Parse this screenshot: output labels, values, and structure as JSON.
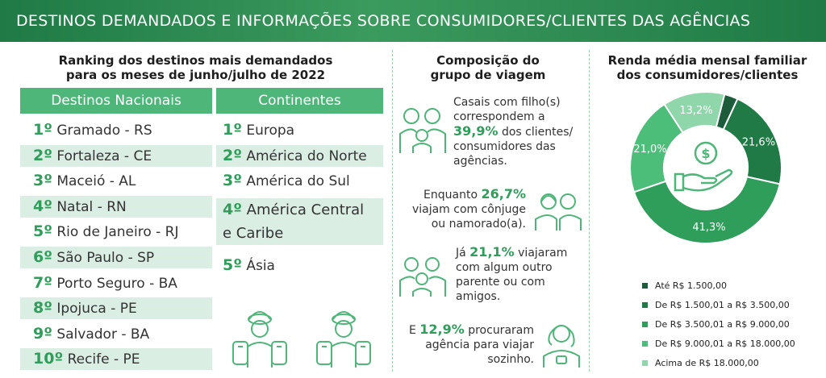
{
  "header": {
    "title": "DESTINOS DEMANDADOS E INFORMAÇÕES SOBRE CONSUMIDORES/CLIENTES DAS AGÊNCIAS"
  },
  "ranking": {
    "title_line1": "Ranking dos destinos mais demandados",
    "title_line2": "para os meses de junho/julho de 2022",
    "national_header": "Destinos Nacionais",
    "continents_header": "Continentes",
    "national": [
      {
        "rank": "1º",
        "name": "Gramado - RS"
      },
      {
        "rank": "2º",
        "name": "Fortaleza - CE"
      },
      {
        "rank": "3º",
        "name": "Maceió - AL"
      },
      {
        "rank": "4º",
        "name": "Natal - RN"
      },
      {
        "rank": "5º",
        "name": "Rio de Janeiro - RJ"
      },
      {
        "rank": "6º",
        "name": "São Paulo - SP"
      },
      {
        "rank": "7º",
        "name": "Porto Seguro - BA"
      },
      {
        "rank": "8º",
        "name": "Ipojuca - PE"
      },
      {
        "rank": "9º",
        "name": " Salvador - BA"
      },
      {
        "rank": "10º",
        "name": "Recife - PE"
      }
    ],
    "continents": [
      {
        "rank": "1º",
        "name": "Europa"
      },
      {
        "rank": "2º",
        "name": "América do Norte"
      },
      {
        "rank": "3º",
        "name": "América do Sul"
      },
      {
        "rank": "4º",
        "name": "América Central",
        "name2": "e Caribe"
      },
      {
        "rank": "5º",
        "name": "Ásia"
      }
    ]
  },
  "group": {
    "title_line1": "Composição do",
    "title_line2": "grupo de viagem",
    "item1": {
      "l1": "Casais com filho(s)",
      "l2": "correspondem a",
      "pct": "39,9%",
      "l3rest": " dos clientes/",
      "l4": "consumidores das",
      "l5": "agências."
    },
    "item2": {
      "pre": "Enquanto ",
      "pct": "26,7%",
      "l2": "viajam com cônjuge",
      "l3": "ou namorado(a)."
    },
    "item3": {
      "pre": "Já ",
      "pct": "21,1%",
      "post": " viajaram",
      "l2": "com algum outro",
      "l3": "parente ou com",
      "l4": "amigos."
    },
    "item4": {
      "pre": "E ",
      "pct": "12,9%",
      "post": " procuraram",
      "l2": "agência para viajar",
      "l3": "sozinho."
    }
  },
  "income": {
    "title_line1": "Renda média mensal familiar",
    "title_line2": "dos consumidores/clientes"
  },
  "chart_data": {
    "type": "pie",
    "donut": true,
    "title": "Renda média mensal familiar dos consumidores/clientes",
    "legend_position": "bottom",
    "slices": [
      {
        "label": "Até R$ 1.500,00",
        "value": 2.9,
        "text": "2,9%",
        "color": "#1d5c3b"
      },
      {
        "label": "De R$ 1.500,01 a R$ 3.500,00",
        "value": 21.6,
        "text": "21,6%",
        "color": "#1f7a45"
      },
      {
        "label": "De R$ 3.500,01 a R$ 9.000,00",
        "value": 41.3,
        "text": "41,3%",
        "color": "#2e9e5a"
      },
      {
        "label": "De R$ 9.000,01 a R$ 18.000,00",
        "value": 21.0,
        "text": "21,0%",
        "color": "#4dbe7a"
      },
      {
        "label": "Acima de R$ 18.000,00",
        "value": 13.2,
        "text": "13,2%",
        "color": "#8fd6aa"
      }
    ]
  }
}
